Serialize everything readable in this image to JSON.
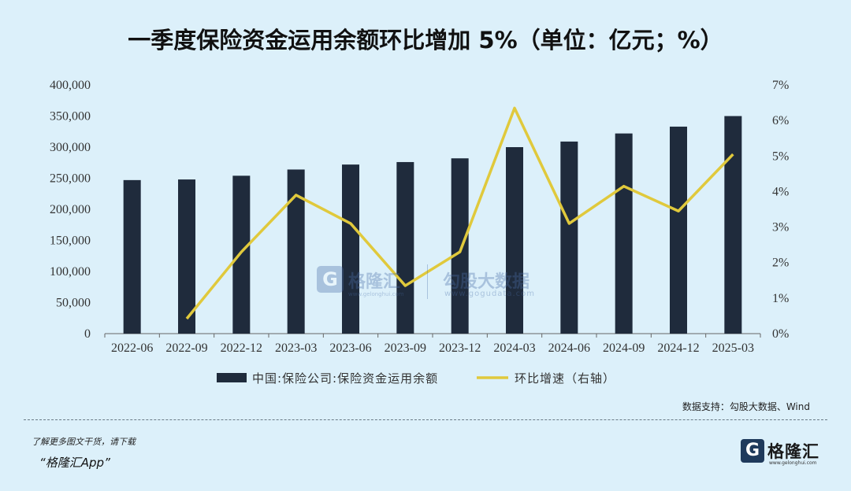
{
  "title": "一季度保险资金运用余额环比增加 5%（单位：亿元；%）",
  "source": "数据支持：勾股大数据、Wind",
  "footer": {
    "promo_line1": "了解更多图文干货，请下载",
    "promo_line2": "“格隆汇App”",
    "brand_icon": "G",
    "brand_name": "格隆汇",
    "brand_url": "www.gelonghui.com"
  },
  "watermark": {
    "icon": "G",
    "name1": "格隆汇",
    "url1": "www.gelonghui.com",
    "name2": "勾股大数据",
    "url2": "www.gogudata.com"
  },
  "colors": {
    "bar": "#1f2b3c",
    "line": "#e0c93c",
    "background": "#dcf0fa"
  },
  "chart_data": {
    "type": "bar+line",
    "categories": [
      "2022-06",
      "2022-09",
      "2022-12",
      "2023-03",
      "2023-06",
      "2023-09",
      "2023-12",
      "2024-03",
      "2024-06",
      "2024-09",
      "2024-12",
      "2025-03"
    ],
    "series": [
      {
        "name": "中国:保险公司:保险资金运用余额",
        "type": "bar",
        "axis": "left",
        "values": [
          247000,
          248000,
          254000,
          264000,
          272000,
          276000,
          282000,
          300000,
          309000,
          322000,
          333000,
          350000
        ]
      },
      {
        "name": "环比增速（右轴）",
        "type": "line",
        "axis": "right",
        "values": [
          null,
          0.42,
          2.3,
          3.9,
          3.1,
          1.35,
          2.3,
          6.35,
          3.1,
          4.15,
          3.45,
          5.05
        ]
      }
    ],
    "left_axis": {
      "min": 0,
      "max": 400000,
      "step": 50000,
      "tick_labels": [
        "0",
        "50,000",
        "100,000",
        "150,000",
        "200,000",
        "250,000",
        "300,000",
        "350,000",
        "400,000"
      ]
    },
    "right_axis": {
      "min": 0,
      "max": 7,
      "step": 1,
      "tick_labels": [
        "0%",
        "1%",
        "2%",
        "3%",
        "4%",
        "5%",
        "6%",
        "7%"
      ]
    },
    "grid": false,
    "legend_position": "bottom"
  }
}
